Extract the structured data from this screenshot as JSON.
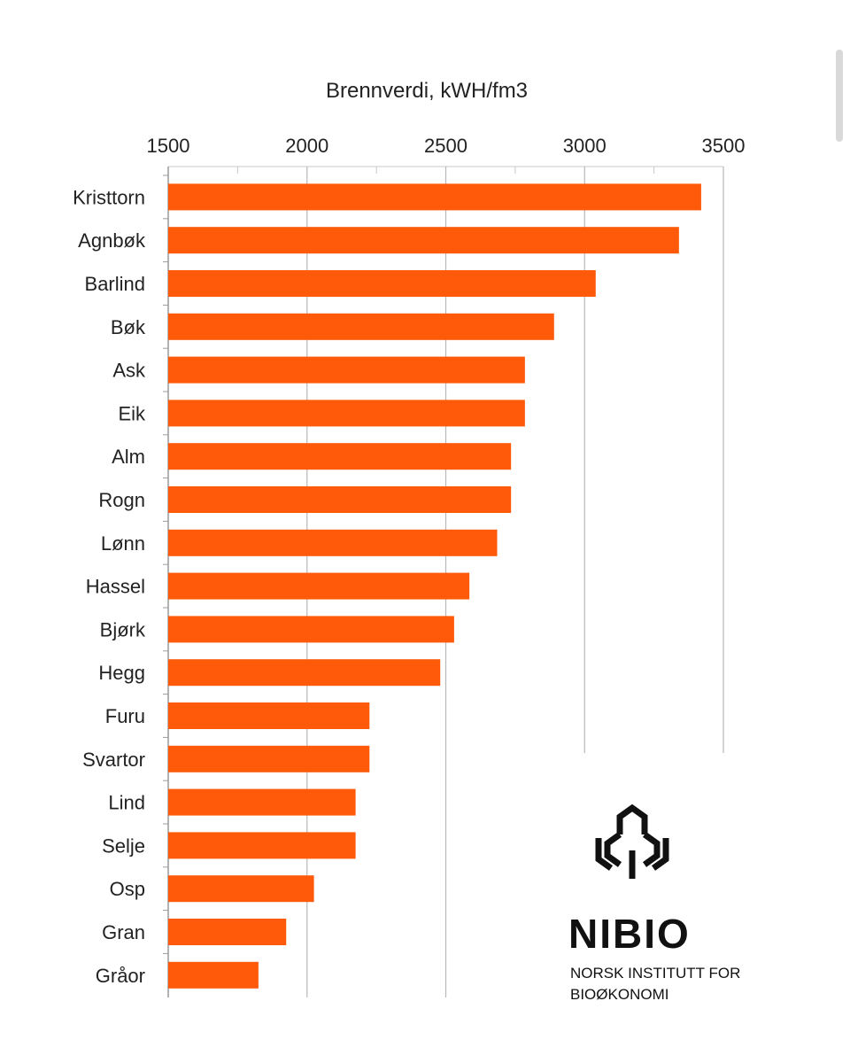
{
  "chart_data": {
    "type": "bar",
    "orientation": "horizontal",
    "title": "Brennverdi, kWH/fm3",
    "xlim": [
      1500,
      3500
    ],
    "xticks": [
      1500,
      2000,
      2500,
      3000,
      3500
    ],
    "axis_position": "top",
    "grid": true,
    "bar_color": "#ff5a0a",
    "categories": [
      "Kristtorn",
      "Agnbøk",
      "Barlind",
      "Bøk",
      "Ask",
      "Eik",
      "Alm",
      "Rogn",
      "Lønn",
      "Hassel",
      "Bjørk",
      "Hegg",
      "Furu",
      "Svartor",
      "Lind",
      "Selje",
      "Osp",
      "Gran",
      "Gråor"
    ],
    "values": [
      3420,
      3340,
      3040,
      2890,
      2785,
      2785,
      2735,
      2735,
      2685,
      2585,
      2530,
      2480,
      2225,
      2225,
      2175,
      2175,
      2025,
      1925,
      1825
    ]
  },
  "logo": {
    "name": "NIBIO",
    "subtitle_line1": "NORSK INSTITUTT FOR",
    "subtitle_line2": "BIOØKONOMI"
  }
}
